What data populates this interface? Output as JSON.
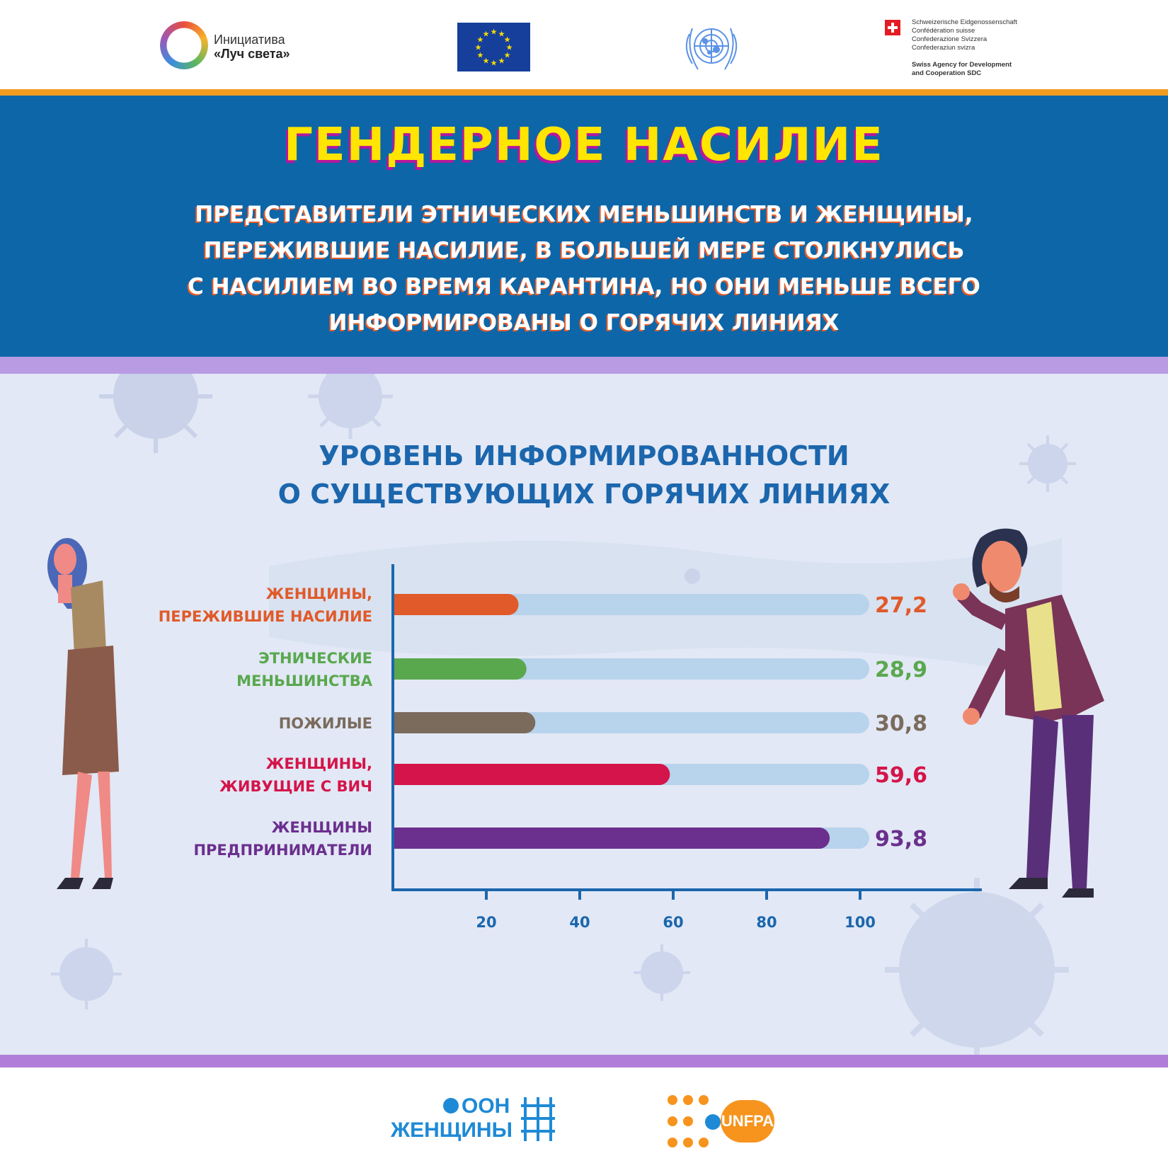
{
  "header": {
    "logos": {
      "luch": {
        "line1": "Инициатива",
        "line2": "«Луч света»"
      },
      "eu": "eu-flag",
      "un": "un-emblem",
      "swiss": {
        "lines": [
          "Schweizerische Eidgenossenschaft",
          "Confédération suisse",
          "Confederazione Svizzera",
          "Confederaziun svizra"
        ],
        "agency": [
          "Swiss Agency for Development",
          "and Cooperation SDC"
        ]
      }
    },
    "title": "ГЕНДЕРНОЕ НАСИЛИЕ",
    "subtitle_lines": [
      "ПРЕДСТАВИТЕЛИ ЭТНИЧЕСКИХ МЕНЬШИНСТВ И ЖЕНЩИНЫ,",
      "ПЕРЕЖИВШИЕ НАСИЛИЕ, В БОЛЬШЕЙ МЕРЕ СТОЛКНУЛИСЬ",
      "С НАСИЛИЕМ ВО ВРЕМЯ КАРАНТИНА, НО ОНИ МЕНЬШЕ ВСЕГО",
      "ИНФОРМИРОВАНЫ О ГОРЯЧИХ ЛИНИЯХ"
    ]
  },
  "chart_data": {
    "type": "bar",
    "orientation": "horizontal",
    "title_lines": [
      "УРОВЕНЬ ИНФОРМИРОВАННОСТИ",
      "О СУЩЕСТВУЮЩИХ ГОРЯЧИХ ЛИНИЯХ"
    ],
    "categories": [
      [
        "ЖЕНЩИНЫ,",
        "ПЕРЕЖИВШИЕ НАСИЛИЕ"
      ],
      [
        "ЭТНИЧЕСКИЕ",
        "МЕНЬШИНСТВА"
      ],
      [
        "ПОЖИЛЫЕ"
      ],
      [
        "ЖЕНЩИНЫ,",
        "ЖИВУЩИЕ С ВИЧ"
      ],
      [
        "ЖЕНЩИНЫ",
        "ПРЕДПРИНИМАТЕЛИ"
      ]
    ],
    "values": [
      27.2,
      28.9,
      30.8,
      59.6,
      93.8
    ],
    "value_labels": [
      "27,2",
      "28,9",
      "30,8",
      "59,6",
      "93,8"
    ],
    "colors": [
      "#e05a2a",
      "#59a84e",
      "#7a6b5d",
      "#d4144a",
      "#6b2f8e"
    ],
    "track_color": "#b8d3ec",
    "xlim": [
      0,
      100
    ],
    "xticks": [
      20,
      40,
      60,
      80,
      100
    ],
    "xtick_labels": [
      "20",
      "40",
      "60",
      "80",
      "100"
    ],
    "axis_color": "#1b66ad"
  },
  "footer": {
    "unwomen": {
      "line1": "ООН",
      "line2": "ЖЕНЩИНЫ"
    },
    "unfpa": "UNFPA"
  }
}
